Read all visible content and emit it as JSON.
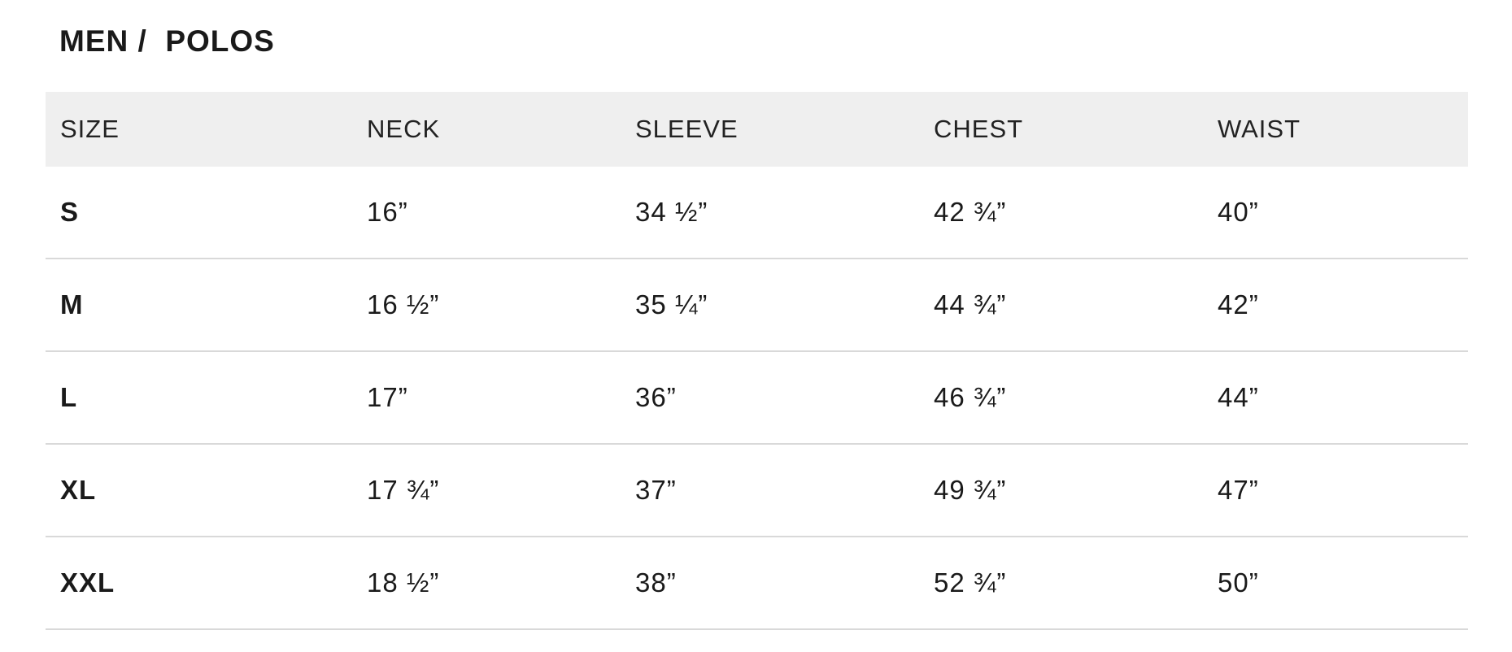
{
  "breadcrumb": {
    "category": "MEN",
    "separator": "/",
    "subcategory": "POLOS"
  },
  "title": "MEN /  POLOS",
  "table": {
    "headers": [
      "SIZE",
      "NECK",
      "SLEEVE",
      "CHEST",
      "WAIST"
    ],
    "rows": [
      [
        "S",
        "16”",
        "34 ½”",
        "42 ¾”",
        "40”"
      ],
      [
        "M",
        "16 ½”",
        "35 ¼”",
        "44 ¾”",
        "42”"
      ],
      [
        "L",
        "17”",
        "36”",
        "46 ¾”",
        "44”"
      ],
      [
        "XL",
        "17 ¾”",
        "37”",
        "49 ¾”",
        "47”"
      ],
      [
        "XXL",
        "18 ½”",
        "38”",
        "52 ¾”",
        "50”"
      ]
    ]
  },
  "colors": {
    "header_bg": "#efefef",
    "divider": "#d9d9d9",
    "text": "#1a1a1a"
  }
}
